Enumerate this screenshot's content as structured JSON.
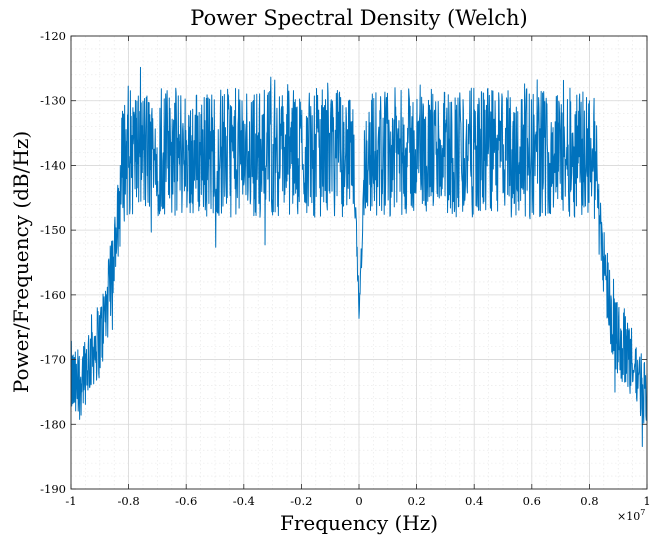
{
  "chart_data": {
    "type": "line",
    "title": "Power Spectral Density (Welch)",
    "xlabel": "Frequency (Hz)",
    "ylabel": "Power/Frequency (dB/Hz)",
    "x_exponent_label": "×10",
    "x_exponent_power": "7",
    "xlim": [
      -1,
      1
    ],
    "ylim": [
      -190,
      -120
    ],
    "x_ticks": [
      -1,
      -0.8,
      -0.6,
      -0.4,
      -0.2,
      0,
      0.2,
      0.4,
      0.6,
      0.8,
      1
    ],
    "x_tick_labels": [
      "-1",
      "-0.8",
      "-0.6",
      "-0.4",
      "-0.2",
      "0",
      "0.2",
      "0.4",
      "0.6",
      "0.8",
      "1"
    ],
    "y_ticks": [
      -190,
      -180,
      -170,
      -160,
      -150,
      -140,
      -130,
      -120
    ],
    "y_tick_labels": [
      "-190",
      "-180",
      "-170",
      "-160",
      "-150",
      "-140",
      "-130",
      "-120"
    ],
    "grid": true,
    "minor_grid": true,
    "line_color": "#0072BD",
    "series": [
      {
        "x": [
          -1.0,
          -0.98,
          -0.96,
          -0.94,
          -0.92,
          -0.9,
          -0.88,
          -0.86,
          -0.84,
          -0.83,
          -0.82,
          -0.8,
          -0.75,
          -0.7,
          -0.6,
          -0.5,
          -0.4,
          -0.3,
          -0.2,
          -0.1,
          -0.05,
          -0.02,
          -0.01,
          0.0,
          0.01,
          0.02,
          0.05,
          0.1,
          0.2,
          0.3,
          0.4,
          0.5,
          0.6,
          0.7,
          0.75,
          0.8,
          0.82,
          0.83,
          0.84,
          0.86,
          0.88,
          0.9,
          0.92,
          0.94,
          0.96,
          0.98,
          1.0
        ],
        "y": [
          -173,
          -175,
          -172,
          -170,
          -168,
          -167,
          -163,
          -158,
          -150,
          -145,
          -139,
          -138,
          -138,
          -138,
          -138,
          -138,
          -138,
          -138,
          -138,
          -138,
          -138,
          -139,
          -150,
          -162,
          -152,
          -139,
          -138,
          -138,
          -138,
          -138,
          -138,
          -138,
          -138,
          -138,
          -138,
          -138,
          -139,
          -145,
          -150,
          -158,
          -164,
          -167,
          -168,
          -170,
          -172,
          -174,
          -175
        ],
        "spread": [
          6,
          6,
          6,
          6,
          6,
          6,
          6,
          6,
          6,
          8,
          10,
          10,
          10,
          10,
          10,
          10,
          10,
          10,
          10,
          10,
          10,
          8,
          3,
          2,
          3,
          8,
          10,
          10,
          10,
          10,
          10,
          10,
          10,
          10,
          10,
          10,
          10,
          8,
          6,
          6,
          6,
          6,
          6,
          6,
          6,
          6,
          6
        ]
      }
    ]
  }
}
